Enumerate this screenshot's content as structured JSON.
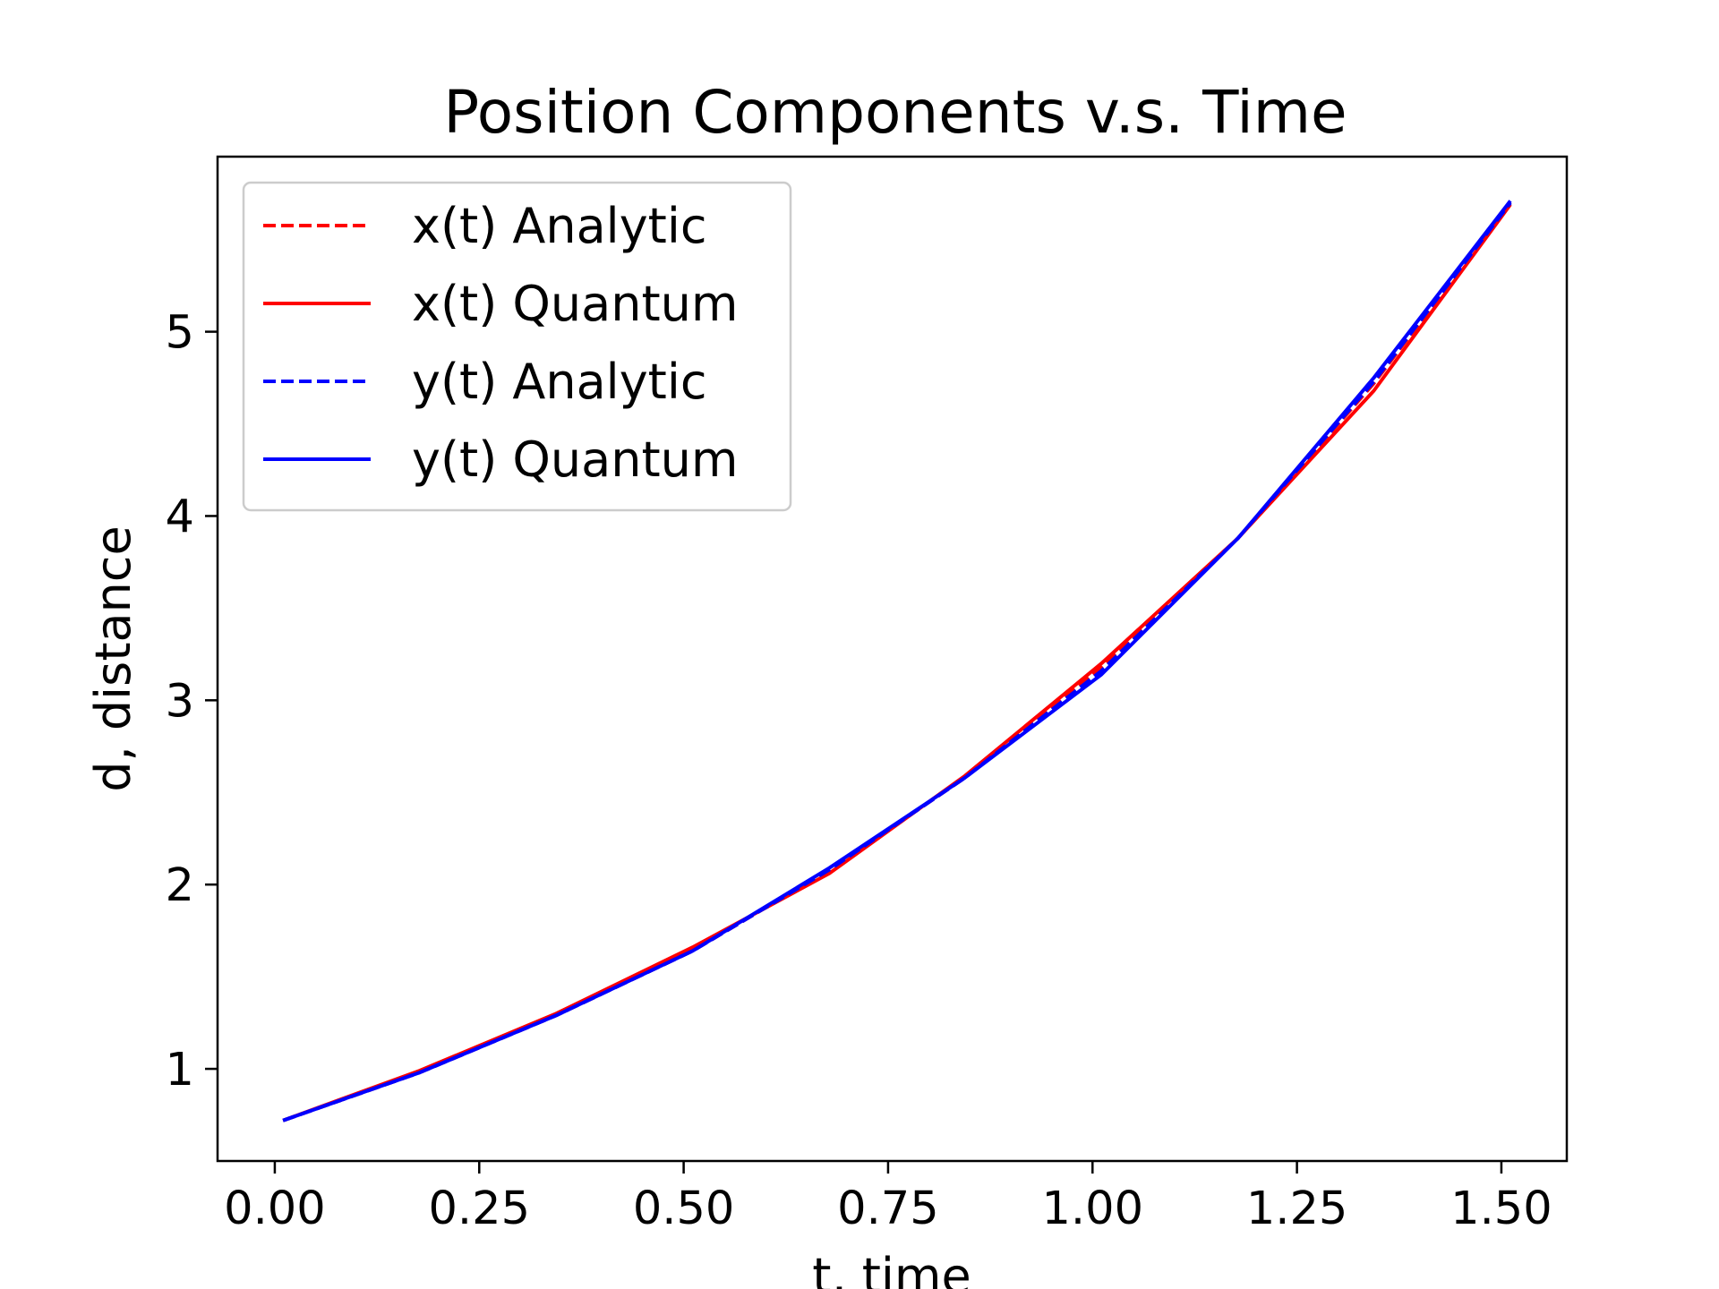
{
  "chart_data": {
    "type": "line",
    "title": "Position Components v.s. Time",
    "xlabel": "t, time",
    "ylabel": "d, distance",
    "xlim": [
      -0.07,
      1.58
    ],
    "ylim": [
      0.5,
      5.95
    ],
    "xticks": [
      0.0,
      0.25,
      0.5,
      0.75,
      1.0,
      1.25,
      1.5
    ],
    "xtick_labels": [
      "0.00",
      "0.25",
      "0.50",
      "0.75",
      "1.00",
      "1.25",
      "1.50"
    ],
    "yticks": [
      1,
      2,
      3,
      4,
      5
    ],
    "ytick_labels": [
      "1",
      "2",
      "3",
      "4",
      "5"
    ],
    "grid": false,
    "legend_position": "upper-left",
    "x": [
      0.01,
      0.177,
      0.344,
      0.511,
      0.678,
      0.844,
      1.011,
      1.178,
      1.344,
      1.511
    ],
    "series": [
      {
        "name": "x(t) Analytic",
        "color": "#ff0000",
        "dash": "dashed",
        "values": [
          0.72,
          0.98,
          1.29,
          1.64,
          2.08,
          2.58,
          3.18,
          3.88,
          4.72,
          5.7
        ]
      },
      {
        "name": "x(t) Quantum",
        "color": "#ff0000",
        "dash": "solid",
        "values": [
          0.72,
          0.99,
          1.3,
          1.66,
          2.06,
          2.59,
          3.2,
          3.88,
          4.68,
          5.69
        ]
      },
      {
        "name": "y(t) Analytic",
        "color": "#0000ff",
        "dash": "dashed",
        "values": [
          0.72,
          0.98,
          1.29,
          1.64,
          2.08,
          2.58,
          3.16,
          3.88,
          4.73,
          5.7
        ]
      },
      {
        "name": "y(t) Quantum",
        "color": "#0000ff",
        "dash": "solid",
        "values": [
          0.72,
          0.98,
          1.29,
          1.64,
          2.09,
          2.58,
          3.14,
          3.88,
          4.75,
          5.71
        ]
      }
    ]
  }
}
